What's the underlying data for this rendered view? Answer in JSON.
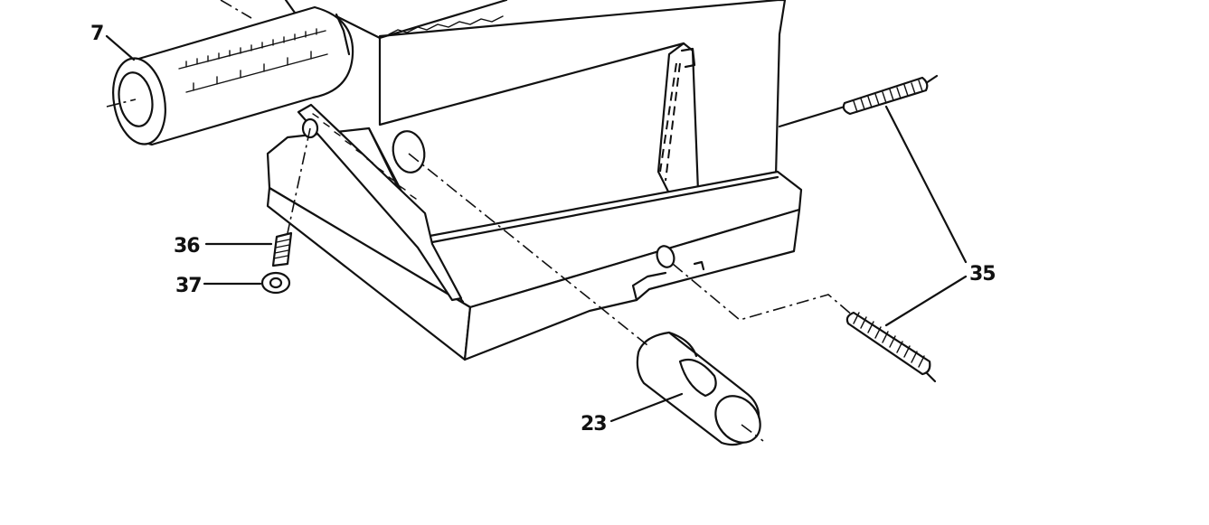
{
  "diagram": {
    "type": "exploded-parts-illustration",
    "callouts": {
      "part_7": "7",
      "part_36": "36",
      "part_37": "37",
      "part_35": "35",
      "part_23": "23"
    }
  }
}
